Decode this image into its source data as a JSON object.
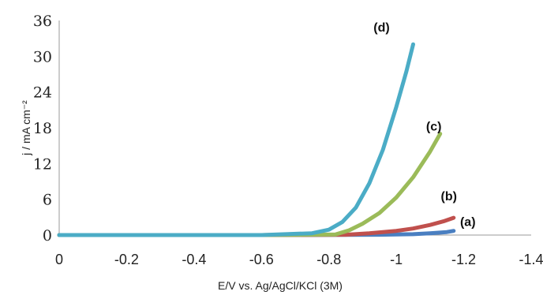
{
  "chart_data": {
    "type": "line",
    "xlabel": "E/V vs. Ag/AgCl/KCl (3M)",
    "ylabel": "j / mA cm⁻²",
    "xlim": [
      0,
      -1.4
    ],
    "ylim": [
      0,
      36
    ],
    "x_ticks": [
      "0",
      "-0.2",
      "-0.4",
      "-0.6",
      "-0.8",
      "-1",
      "-1.2",
      "-1.4"
    ],
    "x_tick_values": [
      0,
      -0.2,
      -0.4,
      -0.6,
      -0.8,
      -1,
      -1.2,
      -1.4
    ],
    "y_ticks": [
      "0",
      "6",
      "12",
      "18",
      "24",
      "30",
      "36"
    ],
    "y_tick_values": [
      0,
      6,
      12,
      18,
      24,
      30,
      36
    ],
    "grid": false,
    "series": [
      {
        "name": "(a)",
        "color": "#4a7fc1",
        "x": [
          0,
          -0.6,
          -0.95,
          -1.05,
          -1.1,
          -1.15,
          -1.17
        ],
        "y": [
          0,
          0,
          0.05,
          0.15,
          0.3,
          0.5,
          0.7
        ]
      },
      {
        "name": "(b)",
        "color": "#c0504d",
        "x": [
          0,
          -0.6,
          -0.85,
          -0.92,
          -1.0,
          -1.05,
          -1.1,
          -1.14,
          -1.17
        ],
        "y": [
          0,
          0,
          0.05,
          0.3,
          0.7,
          1.1,
          1.7,
          2.3,
          2.9
        ]
      },
      {
        "name": "(c)",
        "color": "#9bbb59",
        "x": [
          0,
          -0.6,
          -0.82,
          -0.86,
          -0.9,
          -0.95,
          -1.0,
          -1.05,
          -1.1,
          -1.13
        ],
        "y": [
          0,
          0,
          0.1,
          0.8,
          1.9,
          3.7,
          6.3,
          9.7,
          14.0,
          17.0
        ]
      },
      {
        "name": "(d)",
        "color": "#4bacc6",
        "x": [
          0,
          -0.6,
          -0.75,
          -0.8,
          -0.84,
          -0.88,
          -0.92,
          -0.96,
          -1.0,
          -1.03,
          -1.05
        ],
        "y": [
          0,
          0,
          0.3,
          0.9,
          2.2,
          4.6,
          8.7,
          14.3,
          21.5,
          27.5,
          32.0
        ]
      }
    ]
  }
}
